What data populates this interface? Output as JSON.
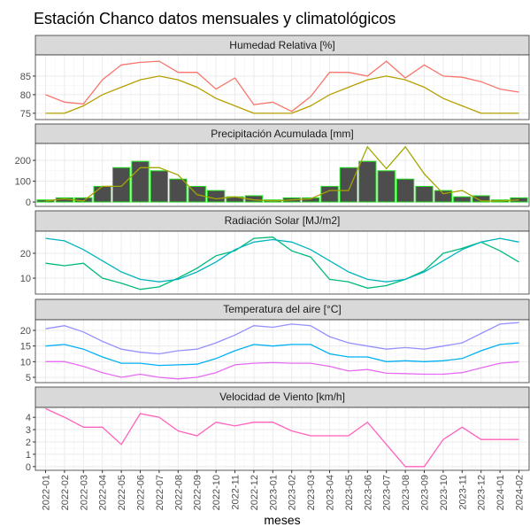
{
  "title": "Estación Chanco datos mensuales y climatológicos",
  "x_label": "meses",
  "chart_data": [
    {
      "type": "line",
      "title": "Humedad Relativa [%]",
      "ylim": [
        73.3,
        90.7
      ],
      "yticks": [
        75,
        80,
        85
      ],
      "grid": true,
      "series": [
        {
          "type": "line",
          "color": "#F8766D",
          "values": [
            80,
            78,
            77.5,
            84,
            88,
            88.7,
            89,
            86,
            86,
            81.5,
            84.5,
            77.3,
            78,
            75.5,
            79.5,
            86,
            86,
            85,
            89,
            84.5,
            88,
            85,
            84.7,
            83.5,
            81.5,
            80.7
          ]
        },
        {
          "type": "line",
          "color": "#B79F00",
          "values": [
            75,
            75,
            77,
            80,
            82,
            84,
            85,
            84,
            82,
            79,
            77,
            75,
            75,
            75,
            77,
            80,
            82,
            84,
            85,
            84,
            82,
            79,
            77,
            75,
            75,
            75
          ]
        }
      ]
    },
    {
      "type": "combo",
      "title": "Precipitación Acumulada [mm]",
      "ylim": [
        -21,
        281
      ],
      "yticks": [
        0,
        100,
        200
      ],
      "grid": true,
      "series": [
        {
          "type": "bar",
          "color": "#4D4D4D",
          "edge_color": "#22DD22",
          "values": [
            10,
            20,
            20,
            75,
            165,
            195,
            150,
            110,
            75,
            55,
            25,
            30,
            10,
            20,
            20,
            75,
            165,
            195,
            150,
            110,
            75,
            55,
            25,
            30,
            10,
            20
          ]
        },
        {
          "type": "line",
          "color": "#A3A500",
          "values": [
            5,
            15,
            5,
            75,
            75,
            165,
            165,
            130,
            35,
            15,
            25,
            10,
            5,
            10,
            15,
            55,
            55,
            265,
            160,
            265,
            135,
            40,
            55,
            5,
            5,
            10
          ]
        }
      ]
    },
    {
      "type": "line",
      "title": "Radiación Solar [MJ/m2]",
      "ylim": [
        3.6,
        28.9
      ],
      "yticks": [
        10,
        20
      ],
      "grid": true,
      "series": [
        {
          "type": "line",
          "color": "#00BA7A",
          "values": [
            16,
            15,
            16,
            10,
            8,
            5.5,
            6.5,
            10,
            14,
            19,
            21,
            26,
            26.5,
            21,
            18.5,
            9.5,
            8.5,
            6,
            7,
            9.5,
            13,
            20,
            22,
            24.5,
            21,
            16.5
          ]
        },
        {
          "type": "line",
          "color": "#00B4C0",
          "values": [
            26,
            25,
            21.5,
            17,
            12.5,
            9.5,
            8.5,
            9.5,
            12.5,
            16.5,
            21.5,
            24.5,
            25.5,
            24.5,
            21.5,
            17,
            12.5,
            9.5,
            8.5,
            9.5,
            12.5,
            17,
            21.5,
            24.5,
            26,
            24.5
          ]
        }
      ]
    },
    {
      "type": "line",
      "title": "Temperatura del aire [°C]",
      "ylim": [
        3.3,
        23.4
      ],
      "yticks": [
        5,
        10,
        15,
        20
      ],
      "grid": true,
      "series": [
        {
          "type": "line",
          "color": "#9590FF",
          "values": [
            20.5,
            21.5,
            19.5,
            16.5,
            14,
            13,
            12.5,
            13.5,
            14,
            16,
            18.5,
            21.5,
            21,
            22,
            21.5,
            18,
            16,
            15,
            14,
            14.5,
            14,
            15,
            16,
            19,
            22,
            22.5
          ]
        },
        {
          "type": "line",
          "color": "#00B0F6",
          "values": [
            15,
            15.5,
            14,
            11.5,
            9.5,
            9.5,
            8.8,
            9,
            9.2,
            11,
            13.5,
            15.5,
            15,
            15.5,
            15.5,
            12.5,
            11.5,
            11.5,
            10,
            10.3,
            10,
            10.3,
            11,
            13.5,
            15.5,
            16
          ]
        },
        {
          "type": "line",
          "color": "#E76BF3",
          "values": [
            10,
            10,
            8.5,
            6.5,
            5,
            6,
            5,
            4.5,
            5,
            6.5,
            9,
            9.5,
            9.7,
            9.5,
            9.5,
            8.5,
            7,
            7.5,
            6.3,
            6.2,
            6,
            6,
            6.5,
            8,
            9.5,
            10
          ]
        }
      ]
    },
    {
      "type": "line",
      "title": "Velocidad de Viento [km/h]",
      "ylim": [
        -0.3,
        4.8
      ],
      "yticks": [
        0,
        1,
        2,
        3,
        4
      ],
      "grid": true,
      "categories": [
        "2022-01",
        "2022-02",
        "2022-03",
        "2022-04",
        "2022-05",
        "2022-06",
        "2022-07",
        "2022-08",
        "2022-09",
        "2022-10",
        "2022-11",
        "2022-12",
        "2023-01",
        "2023-02",
        "2023-03",
        "2023-04",
        "2023-05",
        "2023-06",
        "2023-07",
        "2023-08",
        "2023-09",
        "2023-10",
        "2023-11",
        "2023-12",
        "2024-01",
        "2024-02"
      ],
      "series": [
        {
          "type": "line",
          "color": "#FF62BC",
          "values": [
            4.7,
            4,
            3.2,
            3.2,
            1.8,
            4.3,
            4,
            2.9,
            2.5,
            3.6,
            3.3,
            3.6,
            3.6,
            2.9,
            2.5,
            2.5,
            2.5,
            3.6,
            1.8,
            0,
            0,
            2.2,
            3.2,
            2.2,
            2.2,
            2.2
          ]
        }
      ]
    }
  ]
}
